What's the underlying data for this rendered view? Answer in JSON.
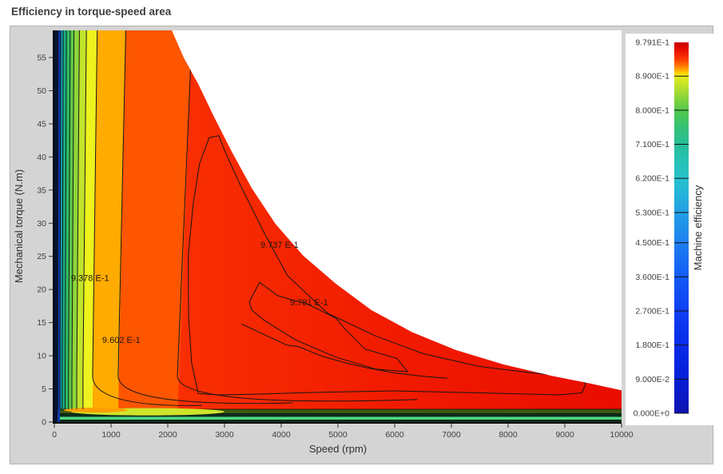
{
  "title": "Efficiency in torque-speed area",
  "chart_data": {
    "type": "contour",
    "title": "Efficiency in torque-speed area",
    "xlabel": "Speed (rpm)",
    "ylabel": "Mechanical torque (N.m)",
    "xlim": [
      0,
      10000
    ],
    "ylim": [
      0,
      59.1
    ],
    "x_ticks": [
      0,
      1000,
      2000,
      3000,
      4000,
      5000,
      6000,
      7000,
      8000,
      9000,
      10000
    ],
    "y_ticks": [
      0,
      5,
      10,
      15,
      20,
      25,
      30,
      35,
      40,
      45,
      50,
      55
    ],
    "grid": false,
    "max_efficiency": 0.9791,
    "colorbar": {
      "label": "Machine efficiency",
      "min": 0.0,
      "max": 0.9791,
      "tick_labels": [
        "9.791E-1",
        "8.900E-1",
        "8.000E-1",
        "7.100E-1",
        "6.200E-1",
        "5.300E-1",
        "4.500E-1",
        "3.600E-1",
        "2.700E-1",
        "1.800E-1",
        "9.000E-2",
        "0.000E+0"
      ],
      "tick_values": [
        0.9791,
        0.89,
        0.8,
        0.71,
        0.62,
        0.53,
        0.45,
        0.36,
        0.27,
        0.18,
        0.09,
        0.0
      ],
      "gradient_stops": [
        [
          0,
          "#c80000"
        ],
        [
          2,
          "#e80d00"
        ],
        [
          4.5,
          "#fb3900"
        ],
        [
          6.5,
          "#ff7e00"
        ],
        [
          8.3,
          "#ffd100"
        ],
        [
          9.1,
          "#e9ec1f"
        ],
        [
          13,
          "#a9dc31"
        ],
        [
          18.3,
          "#52c84b"
        ],
        [
          23,
          "#35c277"
        ],
        [
          27.5,
          "#27bd98"
        ],
        [
          32,
          "#27c2b4"
        ],
        [
          36.7,
          "#27c3cb"
        ],
        [
          41,
          "#25b2da"
        ],
        [
          45.9,
          "#239fe4"
        ],
        [
          50,
          "#2090ea"
        ],
        [
          54,
          "#1d7ff0"
        ],
        [
          59,
          "#186cf4"
        ],
        [
          63.2,
          "#145af7"
        ],
        [
          68,
          "#104cf5"
        ],
        [
          72.4,
          "#0d3ff2"
        ],
        [
          77,
          "#0a35ee"
        ],
        [
          81.6,
          "#082ce8"
        ],
        [
          86,
          "#0626e0"
        ],
        [
          90.8,
          "#0520d6"
        ],
        [
          95,
          "#0a1ac4"
        ],
        [
          100,
          "#0f14b0"
        ]
      ]
    },
    "envelope_max_torque_curve": [
      [
        0,
        59.1
      ],
      [
        2070,
        59.1
      ],
      [
        2280,
        55
      ],
      [
        2540,
        51
      ],
      [
        2820,
        46
      ],
      [
        3130,
        40.8
      ],
      [
        3480,
        35.3
      ],
      [
        3900,
        29.9
      ],
      [
        4390,
        25.1
      ],
      [
        4960,
        20.9
      ],
      [
        5590,
        16.9
      ],
      [
        6300,
        13.6
      ],
      [
        7070,
        10.9
      ],
      [
        7920,
        8.7
      ],
      [
        8760,
        7.0
      ],
      [
        9460,
        5.8
      ],
      [
        10000,
        4.8
      ]
    ],
    "region_red_gradient": [
      "#f93102",
      "#f11b01",
      "#e90d00"
    ],
    "left_bands": [
      {
        "from_rpm": 0,
        "color": "#071233"
      },
      {
        "from_rpm": 60,
        "color": "#0a3ab8"
      },
      {
        "from_rpm": 100,
        "color": "#11a0ac"
      },
      {
        "from_rpm": 140,
        "color": "#17b287"
      },
      {
        "from_rpm": 190,
        "color": "#2fbe63"
      },
      {
        "from_rpm": 250,
        "color": "#5cca49"
      },
      {
        "from_rpm": 310,
        "color": "#8fd639"
      },
      {
        "from_rpm": 395,
        "color": "#c2e42b"
      },
      {
        "from_rpm": 505,
        "color": "#eef21d"
      },
      {
        "from_rpm": 675,
        "color": "#ffab00",
        "tail": [
          2600,
          2.5
        ]
      },
      {
        "from_rpm": 1125,
        "color": "#fd5500",
        "tail": [
          4200,
          2.9
        ]
      },
      {
        "from_rpm": 2170,
        "color": null,
        "tail": [
          6400,
          3.4
        ]
      }
    ],
    "bottom_bands": [
      {
        "from_torque": 0.0,
        "to_torque": 0.36,
        "color": "#0d2d1c"
      },
      {
        "from_torque": 0.36,
        "to_torque": 0.84,
        "color": "#4fd887"
      },
      {
        "from_torque": 0.84,
        "to_torque": 1.33,
        "color": "#0d2d1c"
      },
      {
        "from_torque": 1.33,
        "to_torque": 1.93,
        "color": "#3d5a10"
      }
    ],
    "bottom_blobs": [
      {
        "speed": 1650,
        "torque": 1.55,
        "rx_rpm": 1350,
        "ry_t": 0.55,
        "color": "#cfe42a"
      },
      {
        "speed": 730,
        "torque": 1.8,
        "rx_rpm": 560,
        "ry_t": 0.38,
        "color": "#ffa000"
      }
    ],
    "contour_labels": [
      {
        "text": "9.378 E-1",
        "speed": 630,
        "torque": 21.8
      },
      {
        "text": "9.602 E-1",
        "speed": 1180,
        "torque": 12.4
      },
      {
        "text": "9.737 E-1",
        "speed": 3970,
        "torque": 26.8
      },
      {
        "text": "9.781 E-1",
        "speed": 4490,
        "torque": 18.1
      }
    ],
    "contour_loops": [
      {
        "level": "9.737 E-1",
        "closed": true,
        "points": [
          [
            2535,
            4.3
          ],
          [
            2420,
            9
          ],
          [
            2366,
            16
          ],
          [
            2360,
            25.1
          ],
          [
            2450,
            33
          ],
          [
            2560,
            39
          ],
          [
            2730,
            42.9
          ],
          [
            2900,
            43.2
          ],
          [
            3000,
            41
          ],
          [
            3270,
            35.9
          ],
          [
            3690,
            28.7
          ],
          [
            4110,
            22.1
          ],
          [
            4820,
            16.4
          ],
          [
            5660,
            13
          ],
          [
            6510,
            10.3
          ],
          [
            7490,
            8.4
          ],
          [
            8340,
            7.5
          ],
          [
            8900,
            7.0
          ],
          [
            9250,
            6.6
          ],
          [
            9370,
            5.8
          ],
          [
            9300,
            4.4
          ],
          [
            8900,
            4.1
          ],
          [
            7500,
            4.4
          ],
          [
            6000,
            4.7
          ],
          [
            4700,
            4.5
          ],
          [
            3500,
            4.2
          ],
          [
            2900,
            4.1
          ]
        ]
      },
      {
        "level": "9.781 E-1",
        "closed": true,
        "points": [
          [
            3437,
            18.1
          ],
          [
            3620,
            21.1
          ],
          [
            3930,
            19.1
          ],
          [
            4200,
            18.4
          ],
          [
            4440,
            17.9
          ],
          [
            4960,
            15.7
          ],
          [
            5140,
            13.9
          ],
          [
            5480,
            11.0
          ],
          [
            6040,
            9.6
          ],
          [
            6230,
            7.6
          ],
          [
            5660,
            8.0
          ],
          [
            4960,
            9.8
          ],
          [
            4250,
            12.4
          ],
          [
            3690,
            15.4
          ],
          [
            3480,
            16.9
          ]
        ]
      },
      {
        "level": "",
        "closed": false,
        "points": [
          [
            3300,
            14.8
          ],
          [
            3700,
            13.2
          ],
          [
            4100,
            11.6
          ],
          [
            4300,
            11.4
          ],
          [
            4700,
            10.0
          ],
          [
            5100,
            9.0
          ],
          [
            5500,
            8.2
          ],
          [
            6000,
            7.4
          ],
          [
            6500,
            6.9
          ],
          [
            6930,
            6.6
          ]
        ]
      }
    ]
  }
}
